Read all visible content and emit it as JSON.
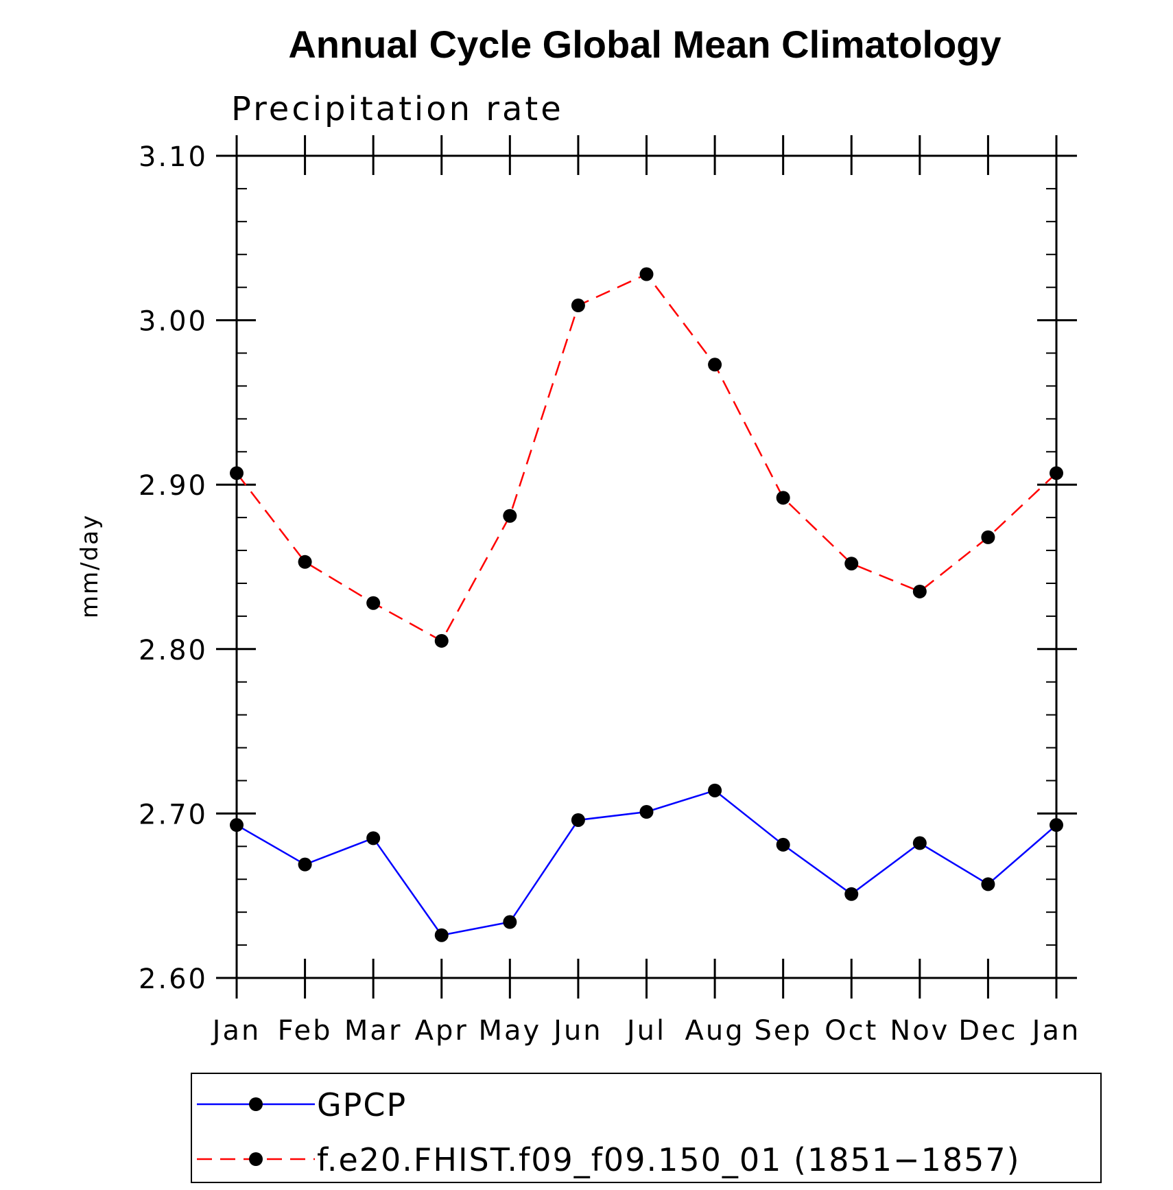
{
  "chart_data": {
    "type": "line",
    "title": "Annual Cycle Global Mean Climatology",
    "subtitle": "Precipitation rate",
    "xlabel": "",
    "ylabel": "mm/day",
    "categories": [
      "Jan",
      "Feb",
      "Mar",
      "Apr",
      "May",
      "Jun",
      "Jul",
      "Aug",
      "Sep",
      "Oct",
      "Nov",
      "Dec",
      "Jan"
    ],
    "ylim": [
      2.6,
      3.1
    ],
    "yticks": [
      "2.60",
      "2.70",
      "2.80",
      "2.90",
      "3.00",
      "3.10"
    ],
    "y_minor_step": 0.02,
    "grid": false,
    "legend_position": "bottom",
    "series": [
      {
        "name": "GPCP",
        "color": "#0000ff",
        "line_style": "solid",
        "marker": "filled-circle",
        "values": [
          2.693,
          2.669,
          2.685,
          2.626,
          2.634,
          2.696,
          2.701,
          2.714,
          2.681,
          2.651,
          2.682,
          2.657,
          2.693
        ]
      },
      {
        "name": "f.e20.FHIST.f09_f09.150_01 (1851−1857)",
        "color": "#ff0000",
        "line_style": "dashed",
        "marker": "filled-circle",
        "values": [
          2.907,
          2.853,
          2.828,
          2.805,
          2.881,
          3.009,
          3.028,
          2.973,
          2.892,
          2.852,
          2.835,
          2.868,
          2.907
        ]
      }
    ]
  }
}
